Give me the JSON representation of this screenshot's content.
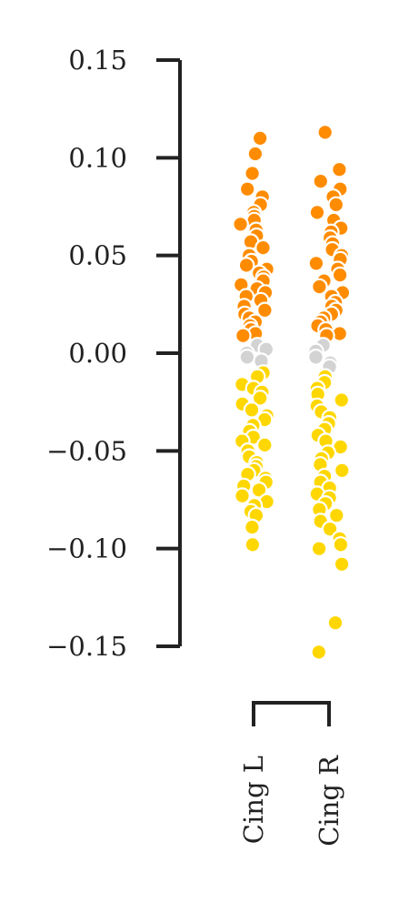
{
  "chart_data": {
    "type": "scatter",
    "subtype": "strip",
    "title": "",
    "xlabel": "",
    "ylabel": "",
    "ylim": [
      -0.15,
      0.15
    ],
    "yticks": [
      0.15,
      0.1,
      0.05,
      0.0,
      -0.05,
      -0.1,
      -0.15
    ],
    "ytick_labels": [
      "0.15",
      "0.10",
      "0.05",
      "0.00",
      "−0.05",
      "−0.10",
      "−0.15"
    ],
    "categories": [
      "Cing L",
      "Cing R"
    ],
    "colors": {
      "positive": "#FF8C00",
      "near_zero": "#D3D3D3",
      "negative": "#FFD700",
      "axis": "#222222"
    },
    "near_zero_threshold": 0.008,
    "grid": false,
    "legend": "none",
    "series": [
      {
        "category": "Cing L",
        "values": [
          0.11,
          0.102,
          0.092,
          0.084,
          0.08,
          0.076,
          0.072,
          0.07,
          0.068,
          0.066,
          0.063,
          0.06,
          0.057,
          0.054,
          0.05,
          0.047,
          0.045,
          0.043,
          0.041,
          0.039,
          0.037,
          0.035,
          0.033,
          0.031,
          0.029,
          0.027,
          0.024,
          0.022,
          0.02,
          0.018,
          0.016,
          0.014,
          0.012,
          0.01,
          0.009,
          0.004,
          0.002,
          0.0,
          -0.002,
          -0.004,
          -0.01,
          -0.012,
          -0.016,
          -0.018,
          -0.02,
          -0.023,
          -0.026,
          -0.029,
          -0.032,
          -0.034,
          -0.037,
          -0.04,
          -0.043,
          -0.045,
          -0.047,
          -0.05,
          -0.053,
          -0.056,
          -0.058,
          -0.06,
          -0.062,
          -0.064,
          -0.066,
          -0.068,
          -0.07,
          -0.073,
          -0.076,
          -0.078,
          -0.081,
          -0.083,
          -0.089,
          -0.098
        ]
      },
      {
        "category": "Cing R",
        "values": [
          0.113,
          0.094,
          0.088,
          0.084,
          0.08,
          0.076,
          0.072,
          0.068,
          0.064,
          0.062,
          0.059,
          0.056,
          0.053,
          0.05,
          0.048,
          0.046,
          0.043,
          0.04,
          0.037,
          0.034,
          0.031,
          0.029,
          0.026,
          0.024,
          0.022,
          0.02,
          0.018,
          0.016,
          0.014,
          0.012,
          0.01,
          0.009,
          0.004,
          0.001,
          -0.002,
          -0.005,
          -0.007,
          -0.012,
          -0.015,
          -0.018,
          -0.021,
          -0.024,
          -0.027,
          -0.03,
          -0.033,
          -0.036,
          -0.039,
          -0.042,
          -0.045,
          -0.048,
          -0.051,
          -0.054,
          -0.057,
          -0.06,
          -0.063,
          -0.066,
          -0.069,
          -0.072,
          -0.074,
          -0.077,
          -0.08,
          -0.083,
          -0.086,
          -0.09,
          -0.095,
          -0.098,
          -0.1,
          -0.108,
          -0.138,
          -0.153
        ]
      }
    ]
  }
}
